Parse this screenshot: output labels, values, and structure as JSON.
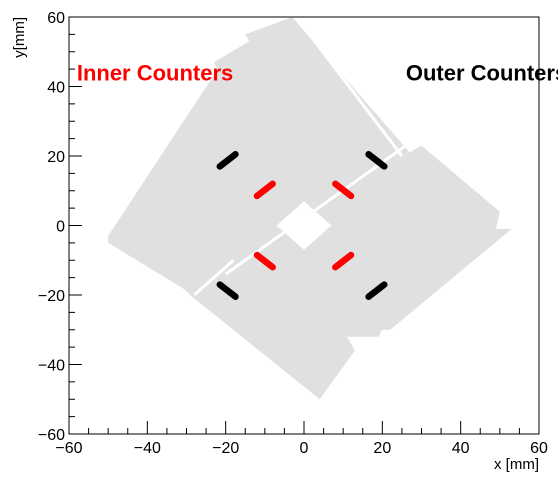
{
  "chart_data": {
    "type": "scatter",
    "xlabel": "x [mm]",
    "ylabel": "y[mm]",
    "xlim": [
      -60,
      60
    ],
    "ylim": [
      -60,
      60
    ],
    "major_ticks": [
      -60,
      -40,
      -20,
      0,
      20,
      40,
      60
    ],
    "tick_labels": [
      "−60",
      "−40",
      "−20",
      "0",
      "20",
      "40",
      "60"
    ],
    "grid": false,
    "annotations": [
      {
        "text": "Inner Counters",
        "color": "#ff0000",
        "x": -58,
        "y": 44
      },
      {
        "text": "Outer Counters",
        "color": "#000000",
        "x": 26,
        "y": 44
      }
    ],
    "detector_area": {
      "color": "#e0e0e0",
      "outline": [
        [
          -50,
          -3
        ],
        [
          -22,
          45
        ],
        [
          -23,
          47
        ],
        [
          -14,
          53
        ],
        [
          -15,
          55
        ],
        [
          -3,
          60
        ],
        [
          3,
          52
        ],
        [
          27,
          21
        ],
        [
          22,
          18
        ],
        [
          30,
          23
        ],
        [
          50,
          4
        ],
        [
          49,
          -1
        ],
        [
          53,
          -1
        ],
        [
          22,
          -30
        ],
        [
          20,
          -30
        ],
        [
          19,
          -32
        ],
        [
          11,
          -32
        ],
        [
          13,
          -36
        ],
        [
          4,
          -50
        ],
        [
          -28,
          -21
        ],
        [
          -31,
          -18
        ],
        [
          -50,
          -5
        ]
      ],
      "hole": [
        [
          0,
          7
        ],
        [
          -5,
          2
        ],
        [
          -7,
          0
        ],
        [
          -2,
          -5
        ],
        [
          0,
          -7
        ],
        [
          5,
          -2
        ],
        [
          7,
          0
        ],
        [
          2,
          5
        ]
      ],
      "gaps": [
        {
          "from": [
            -2,
            60
          ],
          "to": [
            25,
            20
          ]
        },
        {
          "from": [
            -20,
            -14
          ],
          "to": [
            26,
            23
          ]
        },
        {
          "from": [
            -28,
            -20
          ],
          "to": [
            -18,
            -10
          ]
        }
      ]
    },
    "series": [
      {
        "name": "Inner Counters",
        "color": "#ff0000",
        "segments": [
          {
            "x": [
              -12,
              -8
            ],
            "y": [
              8.5,
              12
            ]
          },
          {
            "x": [
              8,
              12
            ],
            "y": [
              12,
              8.5
            ]
          },
          {
            "x": [
              -12,
              -8
            ],
            "y": [
              -8.5,
              -12
            ]
          },
          {
            "x": [
              8,
              12
            ],
            "y": [
              -12,
              -8.5
            ]
          }
        ]
      },
      {
        "name": "Outer Counters",
        "color": "#000000",
        "segments": [
          {
            "x": [
              -21.5,
              -17.5
            ],
            "y": [
              17,
              20.5
            ]
          },
          {
            "x": [
              16.5,
              20.5
            ],
            "y": [
              20.5,
              17
            ]
          },
          {
            "x": [
              -21.5,
              -17.5
            ],
            "y": [
              -17,
              -20.5
            ]
          },
          {
            "x": [
              16.5,
              20.5
            ],
            "y": [
              -20.5,
              -17
            ]
          }
        ]
      }
    ]
  }
}
